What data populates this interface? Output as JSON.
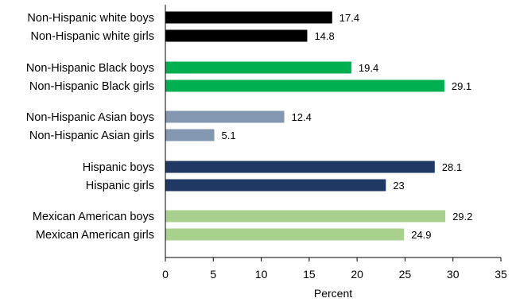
{
  "chart_data": {
    "type": "bar",
    "orientation": "horizontal",
    "categories": [
      "Non-Hispanic white boys",
      "Non-Hispanic white girls",
      "Non-Hispanic Black boys",
      "Non-Hispanic Black girls",
      "Non-Hispanic Asian boys",
      "Non-Hispanic Asian girls",
      "Hispanic boys",
      "Hispanic girls",
      "Mexican American boys",
      "Mexican American girls"
    ],
    "values": [
      17.4,
      14.8,
      19.4,
      29.1,
      12.4,
      5.1,
      28.1,
      23,
      29.2,
      24.9
    ],
    "value_labels": [
      "17.4",
      "14.8",
      "19.4",
      "29.1",
      "12.4",
      "5.1",
      "28.1",
      "23",
      "29.2",
      "24.9"
    ],
    "bar_colors": [
      "#000000",
      "#000000",
      "#00b050",
      "#00b050",
      "#8497b0",
      "#8497b0",
      "#203864",
      "#203864",
      "#a9d18e",
      "#a9d18e"
    ],
    "title": "",
    "xlabel": "Percent",
    "ylabel": "",
    "xlim": [
      0,
      35
    ],
    "xticks": [
      0,
      5,
      10,
      15,
      20,
      25,
      30,
      35
    ],
    "grid": false,
    "legend": "none"
  }
}
